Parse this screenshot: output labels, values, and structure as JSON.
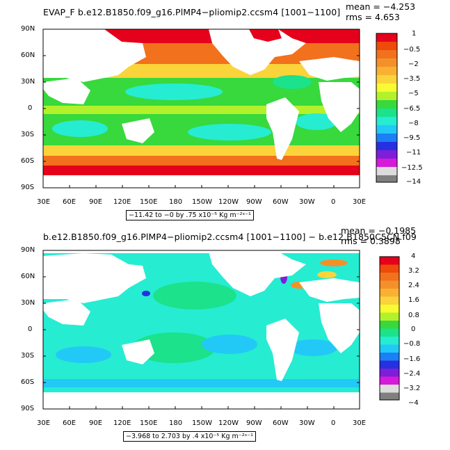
{
  "panels": [
    {
      "field": "EVAP_F",
      "title": "EVAP_F b.e12.B1850.f09_g16.PlMP4−pliomip2.ccsm4 [1001−1100]",
      "mean_label": "mean = −4.253",
      "rms_label": "rms = 4.653",
      "range_label": "−11.42 to −0 by .75 x10⁻⁵ Kg m⁻²ˢ⁻¹",
      "colorbar": {
        "labels": [
          "1",
          "−0.5",
          "−2",
          "−3.5",
          "−5",
          "−6.5",
          "−8",
          "−9.5",
          "−11",
          "−12.5",
          "−14"
        ],
        "colors": [
          "#e5001b",
          "#ee4a0b",
          "#f2711c",
          "#f4902a",
          "#fab133",
          "#fbd33a",
          "#f8fa32",
          "#b3f22a",
          "#37d93c",
          "#1be28b",
          "#26ecd2",
          "#22c9f6",
          "#1b7ff5",
          "#2630e1",
          "#7e1ed8",
          "#d51ad9",
          "#dcdcdc",
          "#7f7f7f"
        ]
      }
    },
    {
      "title": "b.e12.B1850.f09_g16.PlMP4−pliomip2.ccsm4 [1001−1100] − b.e12.B1850C5CN.f09",
      "mean_label": "mean = −0.1985",
      "rms_label": "rms = 0.3898",
      "range_label": "−3.968 to 2.703 by .4 x10⁻⁵ Kg m⁻²ˢ⁻¹",
      "colorbar": {
        "labels": [
          "4",
          "3.2",
          "2.4",
          "1.6",
          "0.8",
          "0",
          "−0.8",
          "−1.6",
          "−2.4",
          "−3.2",
          "−4"
        ],
        "colors": [
          "#e5001b",
          "#ee4a0b",
          "#f2711c",
          "#f4902a",
          "#fab133",
          "#fbd33a",
          "#f8fa32",
          "#b3f22a",
          "#37d93c",
          "#1be28b",
          "#26ecd2",
          "#22c9f6",
          "#1b7ff5",
          "#2630e1",
          "#7e1ed8",
          "#d51ad9",
          "#dcdcdc",
          "#7f7f7f"
        ]
      }
    }
  ],
  "axes": {
    "lat_labels": [
      "90N",
      "60N",
      "30N",
      "0",
      "30S",
      "60S",
      "90S"
    ],
    "lon_labels": [
      "30E",
      "60E",
      "90E",
      "120E",
      "150E",
      "180",
      "150W",
      "120W",
      "90W",
      "60W",
      "30W",
      "0",
      "30E"
    ]
  }
}
